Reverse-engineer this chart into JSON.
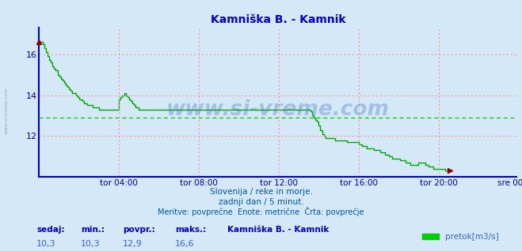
{
  "title": "Kamniška B. - Kamnik",
  "title_color": "#0000cc",
  "bg_color": "#d4e8f8",
  "plot_bg_color": "#d4e8f8",
  "line_color": "#00aa00",
  "line_width": 1.0,
  "avg_line_color": "#00cc00",
  "avg_line_value": 12.9,
  "xlim": [
    0,
    287
  ],
  "ylim": [
    10.0,
    17.3
  ],
  "yticks": [
    12,
    14,
    16
  ],
  "xtick_labels": [
    "tor 04:00",
    "tor 08:00",
    "tor 12:00",
    "tor 16:00",
    "tor 20:00",
    "sre 00:00"
  ],
  "xtick_positions": [
    48,
    96,
    144,
    192,
    240,
    287
  ],
  "xlabel_color": "#0000aa",
  "ylabel_color": "#0000aa",
  "grid_color": "#ff8888",
  "axis_color": "#0000cc",
  "watermark": "www.si-vreme.com",
  "footer_line1": "Slovenija / reke in morje.",
  "footer_line2": "zadnji dan / 5 minut.",
  "footer_line3": "Meritve: povprečne  Enote: metrične  Črta: povprečje",
  "footer_color": "#0055aa",
  "stat_label_color": "#0000cc",
  "stat_value_color": "#3366cc",
  "sedaj": "10,3",
  "min_val": "10,3",
  "povpr": "12,9",
  "maks": "16,6",
  "legend_label": "pretok[m3/s]",
  "legend_color": "#00cc00",
  "sidebar_text": "www.si-vreme.com",
  "sidebar_color": "#6699bb",
  "y_values": [
    16.6,
    16.6,
    16.5,
    16.3,
    16.1,
    15.9,
    15.7,
    15.6,
    15.4,
    15.3,
    15.2,
    15.0,
    14.9,
    14.8,
    14.7,
    14.6,
    14.5,
    14.4,
    14.3,
    14.2,
    14.1,
    14.1,
    14.0,
    13.9,
    13.8,
    13.8,
    13.7,
    13.6,
    13.6,
    13.5,
    13.5,
    13.5,
    13.4,
    13.4,
    13.4,
    13.4,
    13.3,
    13.3,
    13.3,
    13.3,
    13.3,
    13.3,
    13.3,
    13.3,
    13.3,
    13.3,
    13.3,
    13.3,
    13.8,
    13.9,
    14.0,
    14.1,
    14.0,
    13.9,
    13.8,
    13.7,
    13.6,
    13.5,
    13.4,
    13.4,
    13.3,
    13.3,
    13.3,
    13.3,
    13.3,
    13.3,
    13.3,
    13.3,
    13.3,
    13.3,
    13.3,
    13.3,
    13.3,
    13.3,
    13.3,
    13.3,
    13.3,
    13.3,
    13.3,
    13.3,
    13.3,
    13.3,
    13.3,
    13.3,
    13.3,
    13.3,
    13.3,
    13.3,
    13.3,
    13.3,
    13.3,
    13.3,
    13.3,
    13.3,
    13.3,
    13.3,
    13.3,
    13.3,
    13.3,
    13.3,
    13.3,
    13.3,
    13.3,
    13.3,
    13.3,
    13.3,
    13.3,
    13.3,
    13.3,
    13.3,
    13.3,
    13.3,
    13.3,
    13.3,
    13.3,
    13.3,
    13.3,
    13.3,
    13.3,
    13.3,
    13.3,
    13.3,
    13.3,
    13.3,
    13.3,
    13.3,
    13.3,
    13.3,
    13.3,
    13.3,
    13.3,
    13.3,
    13.3,
    13.3,
    13.3,
    13.3,
    13.3,
    13.3,
    13.3,
    13.3,
    13.3,
    13.3,
    13.3,
    13.3,
    13.3,
    13.3,
    13.3,
    13.3,
    13.3,
    13.3,
    13.3,
    13.3,
    13.3,
    13.3,
    13.3,
    13.3,
    13.3,
    13.3,
    13.3,
    13.3,
    13.3,
    13.3,
    13.3,
    13.2,
    13.0,
    12.9,
    12.8,
    12.7,
    12.5,
    12.3,
    12.1,
    12.0,
    11.9,
    11.9,
    11.9,
    11.9,
    11.9,
    11.9,
    11.8,
    11.8,
    11.8,
    11.8,
    11.8,
    11.8,
    11.8,
    11.7,
    11.7,
    11.7,
    11.7,
    11.7,
    11.7,
    11.7,
    11.6,
    11.6,
    11.5,
    11.5,
    11.5,
    11.4,
    11.4,
    11.4,
    11.4,
    11.3,
    11.3,
    11.3,
    11.3,
    11.2,
    11.2,
    11.2,
    11.1,
    11.1,
    11.0,
    11.0,
    10.9,
    10.9,
    10.9,
    10.9,
    10.9,
    10.8,
    10.8,
    10.8,
    10.7,
    10.7,
    10.7,
    10.6,
    10.6,
    10.6,
    10.6,
    10.6,
    10.7,
    10.7,
    10.7,
    10.7,
    10.6,
    10.6,
    10.5,
    10.5,
    10.5,
    10.4,
    10.4,
    10.4,
    10.4,
    10.4,
    10.4,
    10.4,
    10.3,
    10.3,
    10.3,
    10.3
  ]
}
